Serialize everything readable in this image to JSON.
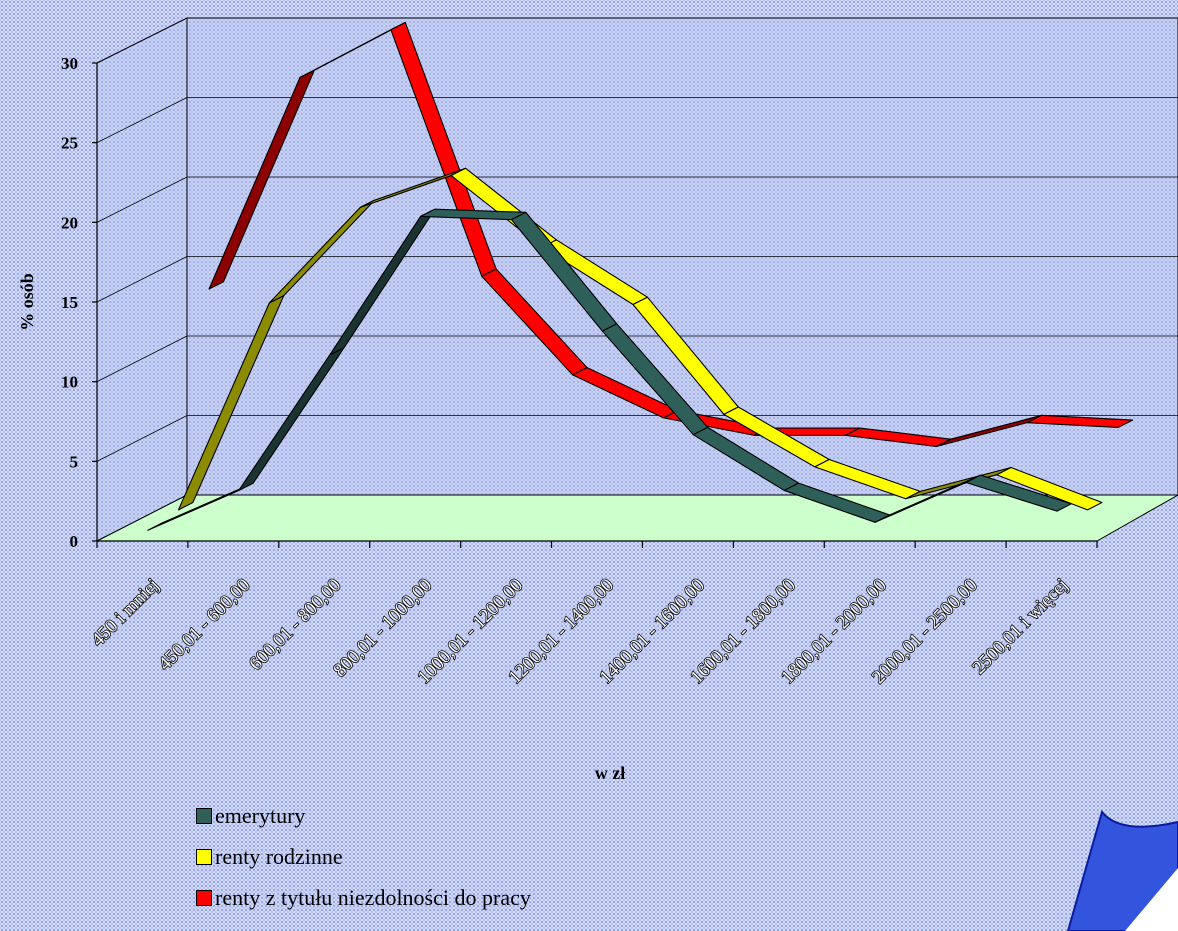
{
  "chart_data": {
    "type": "line",
    "subtype": "3d-ribbon",
    "title": "",
    "xlabel": "w zł",
    "ylabel": "% osób",
    "ylim": [
      0,
      30
    ],
    "yticks": [
      "0",
      "5",
      "10",
      "15",
      "20",
      "25",
      "30"
    ],
    "grid": true,
    "legend_position": "bottom-left",
    "categories": [
      "450 i mniej",
      "450,01 - 600,00",
      "600,01 - 800,00",
      "800,01 - 1000,00",
      "1000,01 - 1200,00",
      "1200,01 - 1400,00",
      "1400,01 - 1600,00",
      "1600,01 - 1800,00",
      "1800,01 - 2000,00",
      "2000,01 - 2500,00",
      "2500,01 i więcej"
    ],
    "series": [
      {
        "name": "emerytury",
        "color": "#2f5f59",
        "values": [
          0.5,
          3.0,
          11.5,
          20.2,
          20.0,
          13.0,
          6.5,
          3.0,
          1.0,
          3.5,
          1.7
        ]
      },
      {
        "name": "renty rodzinne",
        "color": "#ffff00",
        "values": [
          0.8,
          13.8,
          19.8,
          21.8,
          17.3,
          13.7,
          6.8,
          3.5,
          1.5,
          3.0,
          0.8
        ]
      },
      {
        "name": "renty z tytułu niezdolności do pracy",
        "color": "#ff0000",
        "values": [
          13.7,
          27.0,
          30.0,
          14.5,
          8.3,
          5.6,
          4.5,
          4.5,
          3.8,
          5.3,
          5.0
        ]
      }
    ]
  },
  "legend": {
    "items": [
      {
        "label": "emerytury",
        "color": "#2f5f59"
      },
      {
        "label": "renty rodzinne",
        "color": "#ffff00"
      },
      {
        "label": "renty z tytułu niezdolności do pracy",
        "color": "#ff0000"
      }
    ]
  },
  "colors": {
    "floor": "#ccffcc",
    "corner_shape": "#3355dd"
  }
}
